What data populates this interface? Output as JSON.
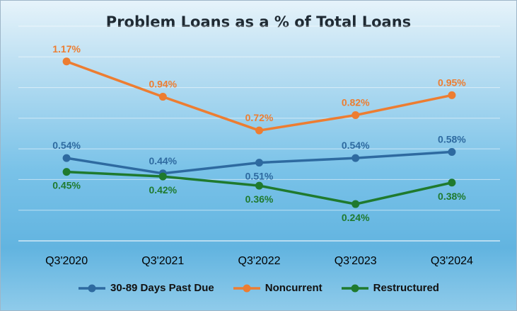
{
  "chart_data": {
    "type": "line",
    "title": "Problem Loans as a % of Total Loans",
    "categories": [
      "Q3'2020",
      "Q3'2021",
      "Q3'2022",
      "Q3'2023",
      "Q3'2024"
    ],
    "series": [
      {
        "name": "30-89 Days Past Due",
        "values": [
          0.54,
          0.44,
          0.51,
          0.54,
          0.58
        ],
        "labels": [
          "0.54%",
          "0.44%",
          "0.51%",
          "0.54%",
          "0.58%"
        ],
        "color": "#2e6aa0"
      },
      {
        "name": "Noncurrent",
        "values": [
          1.17,
          0.94,
          0.72,
          0.82,
          0.95
        ],
        "labels": [
          "1.17%",
          "0.94%",
          "0.72%",
          "0.82%",
          "0.95%"
        ],
        "color": "#ed7d31"
      },
      {
        "name": "Restructured",
        "values": [
          0.45,
          0.42,
          0.36,
          0.24,
          0.38
        ],
        "labels": [
          "0.45%",
          "0.42%",
          "0.36%",
          "0.24%",
          "0.38%"
        ],
        "color": "#1f7a2e"
      }
    ],
    "ylim": [
      0,
      1.4
    ],
    "grid": true,
    "legend": "bottom"
  }
}
